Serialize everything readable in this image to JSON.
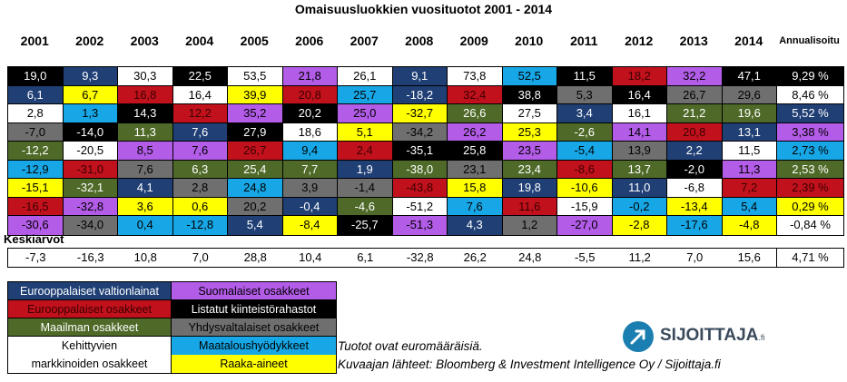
{
  "chart_data": {
    "type": "table",
    "title": "Omaisuusluokkien vuosituotot 2001 - 2014",
    "years": [
      "2001",
      "2002",
      "2003",
      "2004",
      "2005",
      "2006",
      "2007",
      "2008",
      "2009",
      "2010",
      "2011",
      "2012",
      "2013",
      "2014"
    ],
    "annual_header": "Annualisoitu",
    "rows": [
      {
        "cells": [
          [
            "19,0",
            "black"
          ],
          [
            "9,3",
            "navy"
          ],
          [
            "30,3",
            "white"
          ],
          [
            "22,5",
            "black"
          ],
          [
            "53,5",
            "white"
          ],
          [
            "21,8",
            "purple"
          ],
          [
            "26,1",
            "white"
          ],
          [
            "9,1",
            "navy"
          ],
          [
            "73,8",
            "white"
          ],
          [
            "52,5",
            "cyan"
          ],
          [
            "11,5",
            "black"
          ],
          [
            "18,2",
            "red"
          ],
          [
            "32,2",
            "purple"
          ],
          [
            "47,1",
            "black"
          ]
        ],
        "annual": "9,29 %",
        "annual_class": "black"
      },
      {
        "cells": [
          [
            "6,1",
            "navy"
          ],
          [
            "6,7",
            "yellow"
          ],
          [
            "16,8",
            "red"
          ],
          [
            "16,4",
            "white"
          ],
          [
            "39,9",
            "yellow"
          ],
          [
            "20,8",
            "red"
          ],
          [
            "25,7",
            "cyan"
          ],
          [
            "-18,2",
            "navy"
          ],
          [
            "32,4",
            "red"
          ],
          [
            "38,8",
            "black"
          ],
          [
            "5,3",
            "grey"
          ],
          [
            "16,4",
            "black"
          ],
          [
            "26,7",
            "grey"
          ],
          [
            "29,6",
            "grey"
          ]
        ],
        "annual": "8,46 %",
        "annual_class": "white"
      },
      {
        "cells": [
          [
            "2,8",
            "white"
          ],
          [
            "1,3",
            "cyan"
          ],
          [
            "14,3",
            "black"
          ],
          [
            "12,2",
            "red"
          ],
          [
            "35,2",
            "purple"
          ],
          [
            "20,2",
            "black"
          ],
          [
            "25,0",
            "purple"
          ],
          [
            "-32,7",
            "yellow"
          ],
          [
            "26,6",
            "olive"
          ],
          [
            "27,5",
            "white"
          ],
          [
            "3,4",
            "navy"
          ],
          [
            "16,1",
            "white"
          ],
          [
            "21,2",
            "olive"
          ],
          [
            "19,6",
            "olive"
          ]
        ],
        "annual": "5,52 %",
        "annual_class": "navy"
      },
      {
        "cells": [
          [
            "-7,0",
            "grey"
          ],
          [
            "-14,0",
            "black"
          ],
          [
            "11,3",
            "olive"
          ],
          [
            "7,6",
            "navy"
          ],
          [
            "27,9",
            "black"
          ],
          [
            "18,6",
            "white"
          ],
          [
            "5,1",
            "yellow"
          ],
          [
            "-34,2",
            "grey"
          ],
          [
            "26,2",
            "purple"
          ],
          [
            "25,3",
            "yellow"
          ],
          [
            "-2,6",
            "olive"
          ],
          [
            "14,1",
            "purple"
          ],
          [
            "20,8",
            "red"
          ],
          [
            "13,1",
            "navy"
          ]
        ],
        "annual": "3,38 %",
        "annual_class": "purple"
      },
      {
        "cells": [
          [
            "-12,2",
            "olive"
          ],
          [
            "-20,5",
            "white"
          ],
          [
            "8,5",
            "purple"
          ],
          [
            "7,6",
            "purple"
          ],
          [
            "26,7",
            "red"
          ],
          [
            "9,4",
            "cyan"
          ],
          [
            "2,4",
            "red"
          ],
          [
            "-35,1",
            "black"
          ],
          [
            "25,8",
            "black"
          ],
          [
            "23,5",
            "purple"
          ],
          [
            "-5,4",
            "cyan"
          ],
          [
            "13,9",
            "grey"
          ],
          [
            "2,2",
            "navy"
          ],
          [
            "11,5",
            "white"
          ]
        ],
        "annual": "2,73 %",
        "annual_class": "cyan"
      },
      {
        "cells": [
          [
            "-12,9",
            "cyan"
          ],
          [
            "-31,0",
            "red"
          ],
          [
            "7,6",
            "grey"
          ],
          [
            "6,3",
            "olive"
          ],
          [
            "25,4",
            "olive"
          ],
          [
            "7,7",
            "olive"
          ],
          [
            "1,9",
            "navy"
          ],
          [
            "-38,0",
            "olive"
          ],
          [
            "23,1",
            "grey"
          ],
          [
            "23,4",
            "olive"
          ],
          [
            "-8,6",
            "red"
          ],
          [
            "13,7",
            "olive"
          ],
          [
            "-2,0",
            "black"
          ],
          [
            "11,3",
            "purple"
          ]
        ],
        "annual": "2,53 %",
        "annual_class": "olive"
      },
      {
        "cells": [
          [
            "-15,1",
            "yellow"
          ],
          [
            "-32,1",
            "olive"
          ],
          [
            "4,1",
            "navy"
          ],
          [
            "2,8",
            "grey"
          ],
          [
            "24,8",
            "cyan"
          ],
          [
            "3,9",
            "grey"
          ],
          [
            "-1,4",
            "grey"
          ],
          [
            "-43,8",
            "red"
          ],
          [
            "15,8",
            "yellow"
          ],
          [
            "19,8",
            "navy"
          ],
          [
            "-10,6",
            "yellow"
          ],
          [
            "11,0",
            "navy"
          ],
          [
            "-6,8",
            "white"
          ],
          [
            "7,2",
            "red"
          ]
        ],
        "annual": "2,39 %",
        "annual_class": "red"
      },
      {
        "cells": [
          [
            "-16,5",
            "red"
          ],
          [
            "-32,8",
            "purple"
          ],
          [
            "3,6",
            "yellow"
          ],
          [
            "0,6",
            "yellow"
          ],
          [
            "20,2",
            "grey"
          ],
          [
            "-0,4",
            "navy"
          ],
          [
            "-4,6",
            "olive"
          ],
          [
            "-51,2",
            "white"
          ],
          [
            "7,6",
            "cyan"
          ],
          [
            "11,6",
            "red"
          ],
          [
            "-15,9",
            "white"
          ],
          [
            "-0,2",
            "cyan"
          ],
          [
            "-13,4",
            "yellow"
          ],
          [
            "5,4",
            "cyan"
          ]
        ],
        "annual": "0,29 %",
        "annual_class": "yellow"
      },
      {
        "cells": [
          [
            "-30,6",
            "purple"
          ],
          [
            "-34,0",
            "grey"
          ],
          [
            "0,4",
            "cyan"
          ],
          [
            "-12,8",
            "cyan"
          ],
          [
            "5,4",
            "navy"
          ],
          [
            "-8,4",
            "yellow"
          ],
          [
            "-25,7",
            "black"
          ],
          [
            "-51,3",
            "purple"
          ],
          [
            "4,3",
            "navy"
          ],
          [
            "1,2",
            "grey"
          ],
          [
            "-27,0",
            "purple"
          ],
          [
            "-2,8",
            "yellow"
          ],
          [
            "-17,6",
            "cyan"
          ],
          [
            "-4,8",
            "yellow"
          ]
        ],
        "annual": "-0,84 %",
        "annual_class": "white"
      }
    ],
    "averages_label": "Keskiarvot",
    "averages": [
      "-7,3",
      "-16,3",
      "10,8",
      "7,0",
      "28,8",
      "10,4",
      "6,1",
      "-32,8",
      "26,2",
      "24,8",
      "-5,5",
      "11,2",
      "7,0",
      "15,6"
    ],
    "averages_annual": "4,71 %"
  },
  "legend": [
    {
      "label": "Eurooppalaiset valtionlainat",
      "class": "navy"
    },
    {
      "label": "Suomalaiset osakkeet",
      "class": "purple"
    },
    {
      "label": "Eurooppalaiset osakkeet",
      "class": "red"
    },
    {
      "label": "Listatut kiinteistörahastot",
      "class": "black"
    },
    {
      "label": "Maailman osakkeet",
      "class": "olive"
    },
    {
      "label": "Yhdysvaltalaiset osakkeet",
      "class": "grey"
    },
    {
      "label": "Kehittyvien markkinoiden osakkeet",
      "line1": "Kehittyvien",
      "line2": "markkinoiden osakkeet",
      "class": "white"
    },
    {
      "label": "Maataloushyödykkeet",
      "class": "cyan"
    },
    {
      "label": "Raaka-aineet",
      "class": "yellow"
    }
  ],
  "notes": {
    "currency": "Tuotot ovat euromääräisiä.",
    "sources": "Kuvaajan lähteet: Bloomberg & Investment Intelligence Oy / Sijoittaja.fi"
  },
  "logo": {
    "name": "SIJOITTAJA",
    "suffix": ".fi"
  },
  "colors": {
    "navy": "#1f3f75",
    "purple": "#b35ce8",
    "red": "#c1111c",
    "black": "#000000",
    "olive": "#4f6a28",
    "grey": "#6f6f6f",
    "white": "#ffffff",
    "cyan": "#17a7e6",
    "yellow": "#ffff00",
    "logo_circle": "#1a7fb0",
    "logo_text": "#3a4a5c"
  }
}
